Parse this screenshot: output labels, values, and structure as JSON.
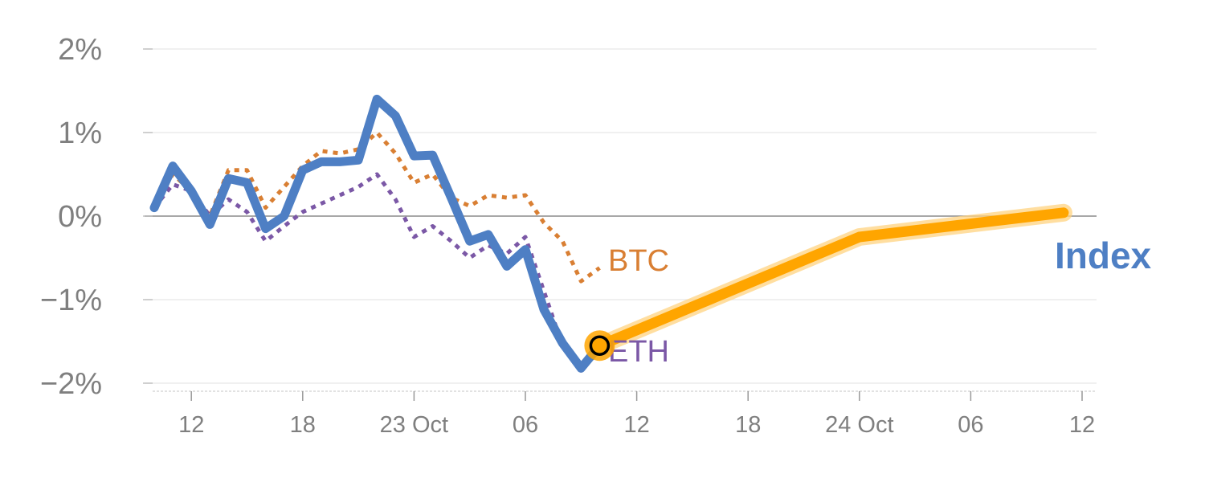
{
  "colors": {
    "index": "#4e7fc4",
    "btc": "#d97f33",
    "eth": "#7b58a6",
    "forecast": "#ffa500",
    "forecast_glow": "#ffd380",
    "grid": "#e6e6e6",
    "zero_line": "#8c8c8c",
    "tick_text": "#7f7f7f"
  },
  "chart_data": {
    "type": "line",
    "ylim": [
      -2,
      2
    ],
    "y_ticks": [
      {
        "value": 2,
        "label": "2%"
      },
      {
        "value": 1,
        "label": "1%"
      },
      {
        "value": 0,
        "label": "0%"
      },
      {
        "value": -1,
        "label": "−1%"
      },
      {
        "value": -2,
        "label": "−2%"
      }
    ],
    "x_unit": "hours since 22 Oct 10:00",
    "xlim": [
      0,
      50
    ],
    "x_ticks": [
      {
        "value": 2,
        "label": "12"
      },
      {
        "value": 8,
        "label": "18"
      },
      {
        "value": 14,
        "label": "23 Oct"
      },
      {
        "value": 20,
        "label": "06"
      },
      {
        "value": 26,
        "label": "12"
      },
      {
        "value": 32,
        "label": "18"
      },
      {
        "value": 38,
        "label": "24 Oct"
      },
      {
        "value": 44,
        "label": "06"
      },
      {
        "value": 50,
        "label": "12"
      }
    ],
    "grid": true,
    "series": [
      {
        "name": "Index",
        "key": "index",
        "style": "solid",
        "x": [
          0,
          1,
          2,
          3,
          4,
          5,
          6,
          7,
          8,
          9,
          10,
          11,
          12,
          13,
          14,
          15,
          16,
          17,
          18,
          19,
          20,
          21,
          22,
          23,
          24
        ],
        "values": [
          0.1,
          0.6,
          0.3,
          -0.1,
          0.45,
          0.4,
          -0.15,
          0.0,
          0.55,
          0.65,
          0.65,
          0.67,
          1.4,
          1.2,
          0.72,
          0.73,
          0.22,
          -0.3,
          -0.22,
          -0.6,
          -0.4,
          -1.12,
          -1.52,
          -1.82,
          -1.55
        ]
      },
      {
        "name": "BTC",
        "key": "btc",
        "style": "dotted",
        "x": [
          0,
          1,
          2,
          3,
          4,
          5,
          6,
          7,
          8,
          9,
          10,
          11,
          12,
          13,
          14,
          15,
          16,
          17,
          18,
          19,
          20,
          21,
          22,
          23,
          24
        ],
        "values": [
          0.15,
          0.5,
          0.3,
          0.0,
          0.55,
          0.55,
          0.1,
          0.35,
          0.6,
          0.78,
          0.75,
          0.8,
          1.0,
          0.75,
          0.4,
          0.5,
          0.22,
          0.12,
          0.25,
          0.22,
          0.25,
          -0.08,
          -0.3,
          -0.78,
          -0.62
        ]
      },
      {
        "name": "ETH",
        "key": "eth",
        "style": "dotted",
        "x": [
          0,
          1,
          2,
          3,
          4,
          5,
          6,
          7,
          8,
          9,
          10,
          11,
          12,
          13,
          14,
          15,
          16,
          17,
          18,
          19,
          20,
          21,
          22,
          23,
          24
        ],
        "values": [
          0.1,
          0.38,
          0.3,
          0.0,
          0.2,
          0.05,
          -0.3,
          -0.12,
          0.05,
          0.15,
          0.25,
          0.35,
          0.5,
          0.2,
          -0.25,
          -0.12,
          -0.3,
          -0.5,
          -0.35,
          -0.45,
          -0.25,
          -0.9,
          -1.55,
          -1.85,
          -1.55
        ]
      },
      {
        "key": "forecast",
        "style": "band",
        "x": [
          24,
          38,
          49
        ],
        "values": [
          -1.55,
          -0.25,
          0.04
        ]
      }
    ],
    "current_point": {
      "x": 24,
      "value": -1.55
    },
    "labels": {
      "btc": "BTC",
      "eth": "ETH",
      "index": "Index"
    }
  }
}
